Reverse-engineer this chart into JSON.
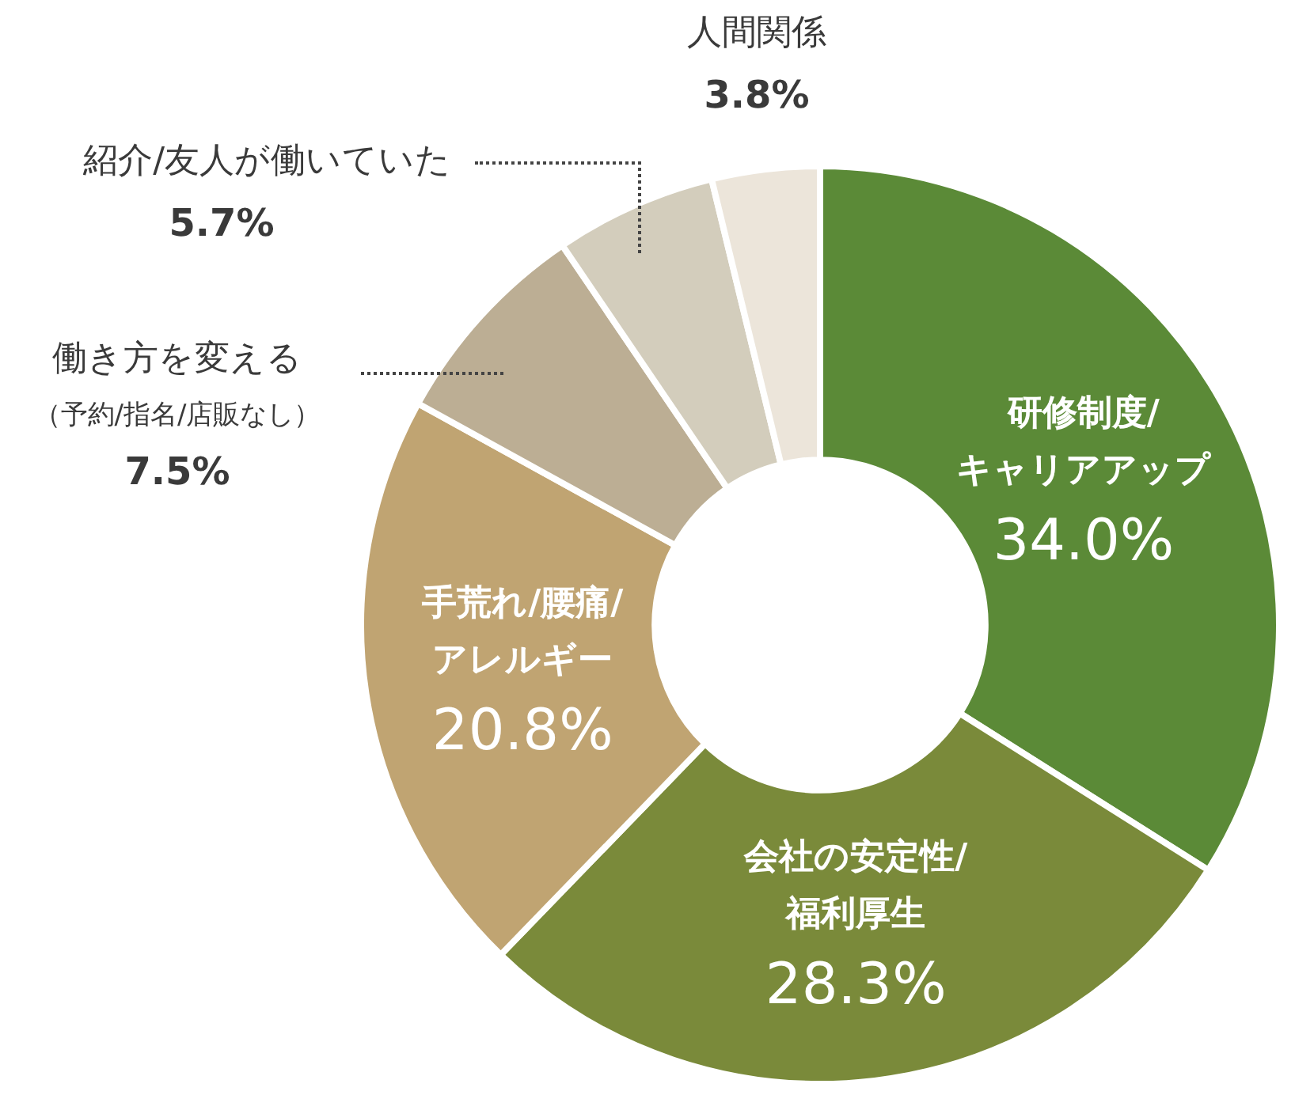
{
  "chart_data": {
    "type": "donut",
    "categories": [
      "研修制度/キャリアアップ",
      "会社の安定性/福利厚生",
      "手荒れ/腰痛/アレルギー",
      "働き方を変える（予約/指名/店販なし）",
      "紹介/友人が働いていた",
      "人間関係"
    ],
    "values": [
      34.0,
      28.3,
      20.8,
      7.5,
      5.7,
      3.8
    ],
    "value_labels": [
      "34.0%",
      "28.3%",
      "20.8%",
      "7.5%",
      "5.7%",
      "3.8%"
    ],
    "colors": [
      "#5b8a37",
      "#7a8a3a",
      "#c0a472",
      "#bcae94",
      "#d3cdbc",
      "#ece5da"
    ],
    "legend": false
  }
}
